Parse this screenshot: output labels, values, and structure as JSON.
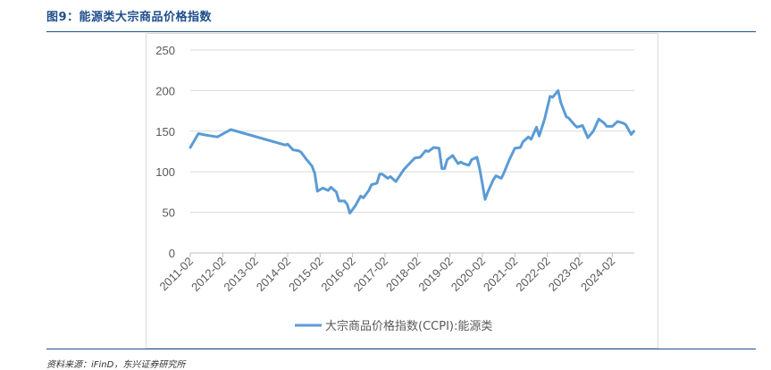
{
  "figure": {
    "title": "图9：能源类大宗商品价格指数",
    "source": "资料来源：iFinD，东兴证券研究所"
  },
  "colors": {
    "line": "#5b9bd5",
    "grid": "#d9d9d9",
    "axis": "#bfbfbf",
    "accent": "#1f4e8c"
  },
  "chart_data": {
    "type": "line",
    "title": "",
    "xlabel": "",
    "ylabel": "",
    "ylim": [
      0,
      250
    ],
    "y_ticks": [
      "0",
      "50",
      "100",
      "150",
      "200",
      "250"
    ],
    "x_ticks": [
      "2011-02",
      "2012-02",
      "2013-02",
      "2014-02",
      "2015-02",
      "2016-02",
      "2017-02",
      "2018-02",
      "2019-02",
      "2020-02",
      "2021-02",
      "2022-02",
      "2023-02",
      "2024-02"
    ],
    "grid": true,
    "legend_position": "bottom",
    "series": [
      {
        "name": "大宗商品价格指数(CCPI):能源类",
        "x": [
          "2011-02",
          "2011-05",
          "2011-08",
          "2011-12",
          "2012-05",
          "2014-01",
          "2014-02",
          "2014-04",
          "2014-06",
          "2014-07",
          "2014-09",
          "2014-11",
          "2014-12",
          "2015-01",
          "2015-03",
          "2015-05",
          "2015-06",
          "2015-08",
          "2015-09",
          "2015-11",
          "2015-12",
          "2016-01",
          "2016-03",
          "2016-05",
          "2016-06",
          "2016-08",
          "2016-09",
          "2016-11",
          "2016-12",
          "2017-01",
          "2017-03",
          "2017-04",
          "2017-06",
          "2017-07",
          "2017-09",
          "2017-11",
          "2018-01",
          "2018-03",
          "2018-05",
          "2018-06",
          "2018-08",
          "2018-10",
          "2018-11",
          "2018-12",
          "2019-01",
          "2019-03",
          "2019-05",
          "2019-06",
          "2019-07",
          "2019-09",
          "2019-10",
          "2019-12",
          "2020-01",
          "2020-03",
          "2020-04",
          "2020-06",
          "2020-07",
          "2020-09",
          "2020-10",
          "2020-12",
          "2021-02",
          "2021-04",
          "2021-05",
          "2021-07",
          "2021-08",
          "2021-10",
          "2021-11",
          "2022-01",
          "2022-03",
          "2022-04",
          "2022-06",
          "2022-07",
          "2022-09",
          "2022-10",
          "2022-12",
          "2023-01",
          "2023-03",
          "2023-05",
          "2023-07",
          "2023-09",
          "2023-11",
          "2023-12",
          "2024-02",
          "2024-04",
          "2024-06",
          "2024-07",
          "2024-09",
          "2024-10"
        ],
        "values": [
          130,
          147,
          145,
          143,
          152,
          133,
          134,
          127,
          126,
          124,
          115,
          107,
          98,
          76,
          80,
          77,
          81,
          75,
          64,
          64,
          60,
          49,
          58,
          70,
          68,
          77,
          84,
          86,
          97,
          97,
          92,
          94,
          88,
          93,
          103,
          110,
          117,
          118,
          126,
          125,
          130,
          129,
          104,
          104,
          115,
          120,
          110,
          112,
          110,
          108,
          115,
          118,
          104,
          66,
          75,
          90,
          95,
          92,
          99,
          115,
          129,
          130,
          137,
          143,
          140,
          155,
          144,
          165,
          193,
          192,
          200,
          185,
          168,
          166,
          158,
          155,
          157,
          142,
          150,
          165,
          160,
          156,
          156,
          162,
          160,
          158,
          146,
          150
        ]
      }
    ]
  }
}
